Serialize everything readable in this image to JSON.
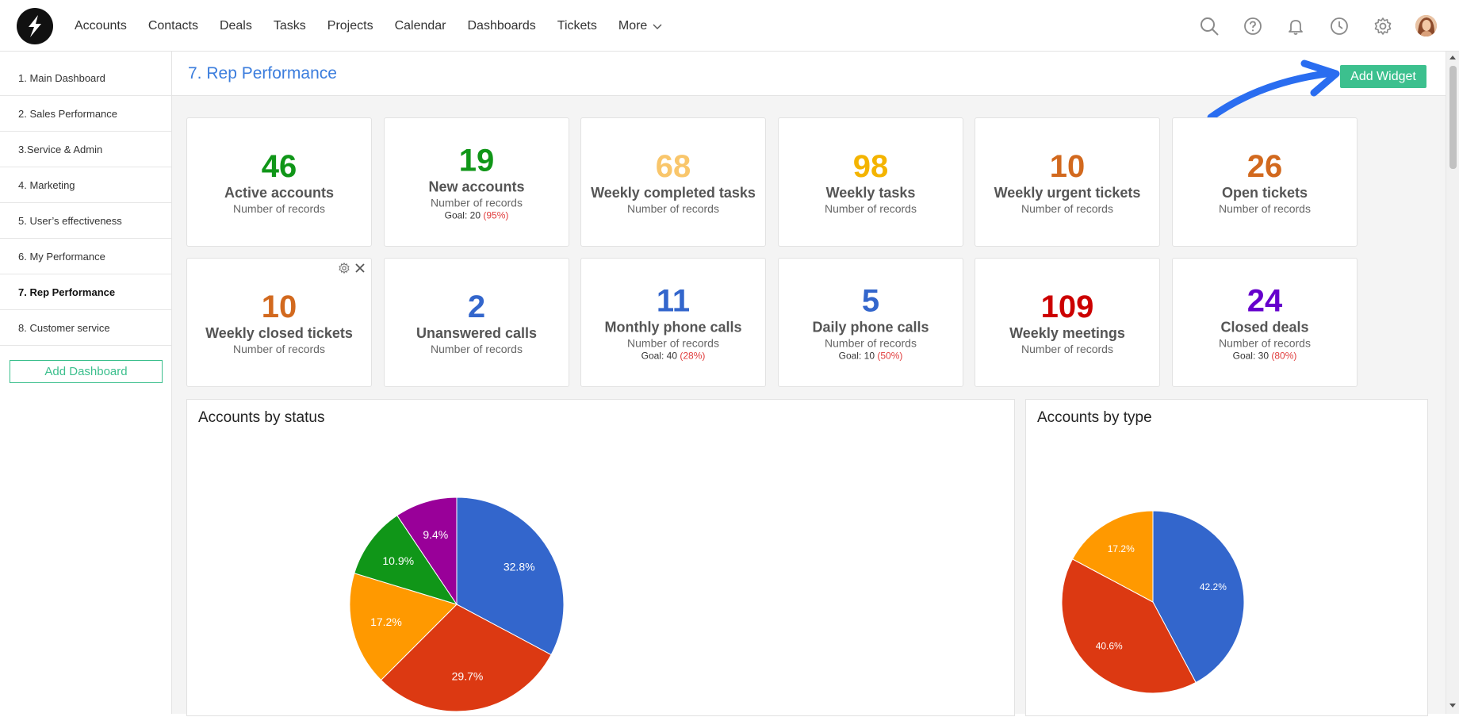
{
  "nav": {
    "items": [
      "Accounts",
      "Contacts",
      "Deals",
      "Tasks",
      "Projects",
      "Calendar",
      "Dashboards",
      "Tickets"
    ],
    "more": "More"
  },
  "icons": {
    "logo": "brand-logo-icon",
    "search": "search-icon",
    "help": "help-icon",
    "bell": "bell-icon",
    "history": "clock-icon",
    "settings": "gear-icon"
  },
  "sidebar": {
    "items": [
      {
        "label": "1. Main Dashboard",
        "active": false
      },
      {
        "label": "2. Sales Performance",
        "active": false
      },
      {
        "label": "3.Service & Admin",
        "active": false
      },
      {
        "label": "4. Marketing",
        "active": false
      },
      {
        "label": "5. User’s effectiveness",
        "active": false
      },
      {
        "label": "6. My Performance",
        "active": false
      },
      {
        "label": "7. Rep Performance",
        "active": true
      },
      {
        "label": "8. Customer service",
        "active": false
      }
    ],
    "add_dashboard": "Add Dashboard"
  },
  "page": {
    "title": "7. Rep Performance",
    "add_widget": "Add Widget"
  },
  "colors": {
    "accent_green": "#3cc08e",
    "title_blue": "#3b7ddd",
    "goal_red": "#e03c3c"
  },
  "kpis": [
    {
      "value": "46",
      "label": "Active accounts",
      "sub": "Number of records",
      "color": "#109618"
    },
    {
      "value": "19",
      "label": "New accounts",
      "sub": "Number of records",
      "goal": "Goal: 20",
      "goal_pct": "(95%)",
      "color": "#109618"
    },
    {
      "value": "68",
      "label": "Weekly completed tasks",
      "sub": "Number of records",
      "color": "#f9c66b"
    },
    {
      "value": "98",
      "label": "Weekly tasks",
      "sub": "Number of records",
      "color": "#f4b400"
    },
    {
      "value": "10",
      "label": "Weekly urgent tickets",
      "sub": "Number of records",
      "color": "#d2691e"
    },
    {
      "value": "26",
      "label": "Open tickets",
      "sub": "Number of records",
      "color": "#d2691e"
    },
    {
      "value": "10",
      "label": "Weekly closed tickets",
      "sub": "Number of records",
      "color": "#d2691e"
    },
    {
      "value": "2",
      "label": "Unanswered calls",
      "sub": "Number of records",
      "color": "#3366cc"
    },
    {
      "value": "11",
      "label": "Monthly phone calls",
      "sub": "Number of records",
      "goal": "Goal: 40",
      "goal_pct": "(28%)",
      "color": "#3366cc"
    },
    {
      "value": "5",
      "label": "Daily phone calls",
      "sub": "Number of records",
      "goal": "Goal: 10",
      "goal_pct": "(50%)",
      "color": "#3366cc"
    },
    {
      "value": "109",
      "label": "Weekly meetings",
      "sub": "Number of records",
      "color": "#cc0000"
    },
    {
      "value": "24",
      "label": "Closed deals",
      "sub": "Number of records",
      "goal": "Goal: 30",
      "goal_pct": "(80%)",
      "color": "#6600cc"
    }
  ],
  "chart_data": [
    {
      "type": "pie",
      "title": "Accounts by status",
      "slices": [
        {
          "value": 32.8,
          "label": "32.8%",
          "color": "#3366cc"
        },
        {
          "value": 29.7,
          "label": "29.7%",
          "color": "#dc3912"
        },
        {
          "value": 17.2,
          "label": "17.2%",
          "color": "#ff9900"
        },
        {
          "value": 10.9,
          "label": "10.9%",
          "color": "#109618"
        },
        {
          "value": 9.4,
          "label": "9.4%",
          "color": "#990099"
        }
      ]
    },
    {
      "type": "pie",
      "title": "Accounts by type",
      "slices": [
        {
          "value": 42.2,
          "label": "42.2%",
          "color": "#3366cc"
        },
        {
          "value": 40.6,
          "label": "40.6%",
          "color": "#dc3912"
        },
        {
          "value": 17.2,
          "label": "17.2%",
          "color": "#ff9900"
        }
      ]
    }
  ]
}
